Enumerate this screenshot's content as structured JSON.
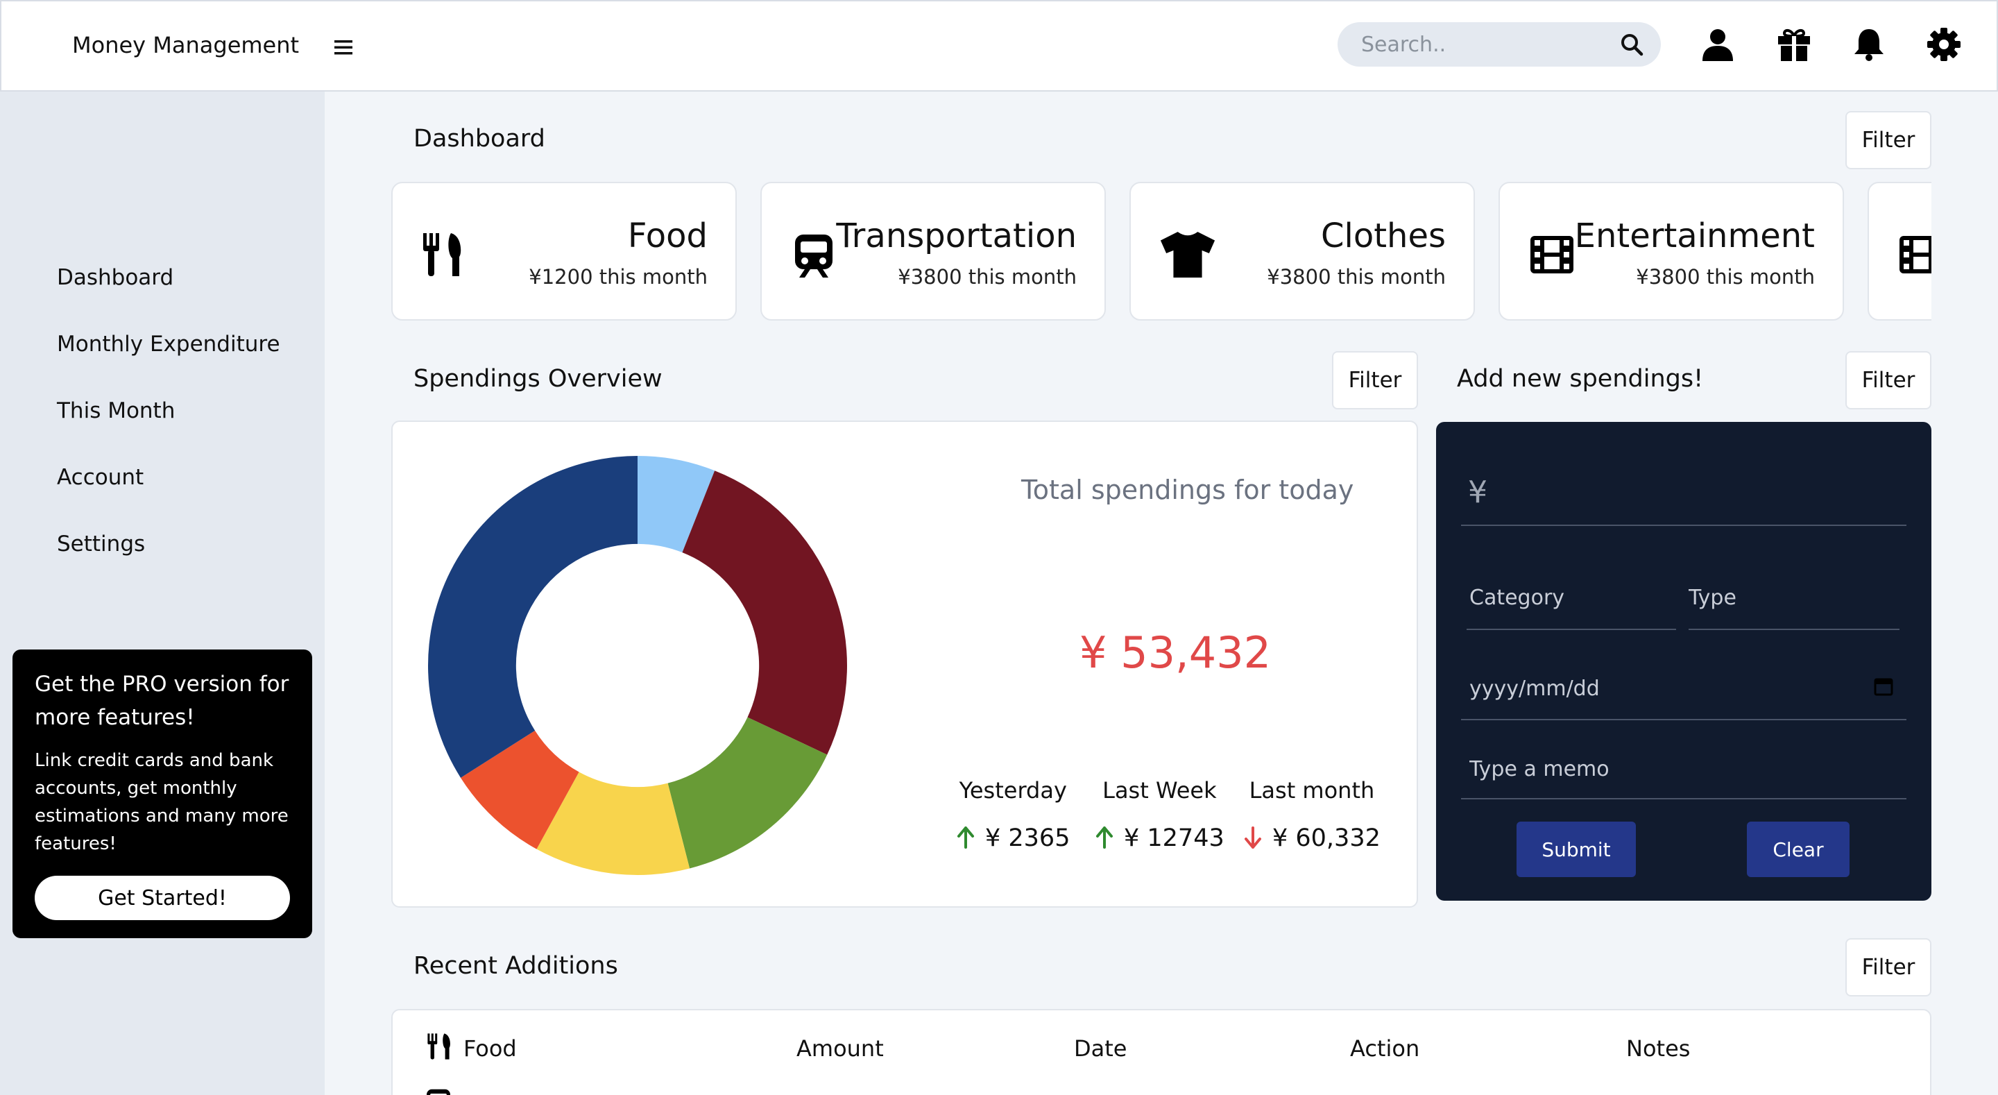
{
  "header": {
    "title": "Money Management",
    "search_placeholder": "Search.."
  },
  "sidebar": {
    "items": [
      {
        "label": "Dashboard"
      },
      {
        "label": "Monthly Expenditure"
      },
      {
        "label": "This Month"
      },
      {
        "label": "Account"
      },
      {
        "label": "Settings"
      }
    ],
    "promo": {
      "title": "Get the PRO version for more features!",
      "text": "Link credit cards and bank accounts, get monthly estimations and many more features!",
      "button": "Get Started!"
    }
  },
  "dashboard": {
    "title": "Dashboard",
    "filter_label": "Filter",
    "categories": [
      {
        "name": "Food",
        "amount": "¥1200 this month",
        "icon": "utensils-icon"
      },
      {
        "name": "Transportation",
        "amount": "¥3800 this month",
        "icon": "train-icon"
      },
      {
        "name": "Clothes",
        "amount": "¥3800 this month",
        "icon": "tshirt-icon"
      },
      {
        "name": "Entertainment",
        "amount": "¥3800 this month",
        "icon": "film-icon"
      }
    ]
  },
  "overview": {
    "title": "Spendings Overview",
    "filter_label": "Filter",
    "today_label": "Total spendings for today",
    "today_total": "¥ 53,432",
    "stats": [
      {
        "label": "Yesterday",
        "value": "¥ 2365",
        "trend": "up"
      },
      {
        "label": "Last Week",
        "value": "¥ 12743",
        "trend": "up"
      },
      {
        "label": "Last month",
        "value": "¥ 60,332",
        "trend": "down"
      }
    ],
    "colors": {
      "up": "#2f8a2f",
      "down": "#e04848"
    }
  },
  "chart_data": {
    "type": "pie",
    "values": [
      6,
      26,
      14,
      12,
      8,
      34
    ],
    "colors": [
      "#90c8f8",
      "#721522",
      "#689b36",
      "#f8d44c",
      "#ec522e",
      "#1a3e7c"
    ],
    "hole": 0.58
  },
  "add_form": {
    "title": "Add new spendings!",
    "filter_label": "Filter",
    "currency": "¥",
    "category_placeholder": "Category",
    "type_placeholder": "Type",
    "date_placeholder": "yyyy/mm/dd",
    "memo_placeholder": "Type a memo",
    "submit_label": "Submit",
    "clear_label": "Clear"
  },
  "recent": {
    "title": "Recent Additions",
    "filter_label": "Filter",
    "columns": [
      "Food",
      "Amount",
      "Date",
      "Action",
      "Notes"
    ]
  }
}
